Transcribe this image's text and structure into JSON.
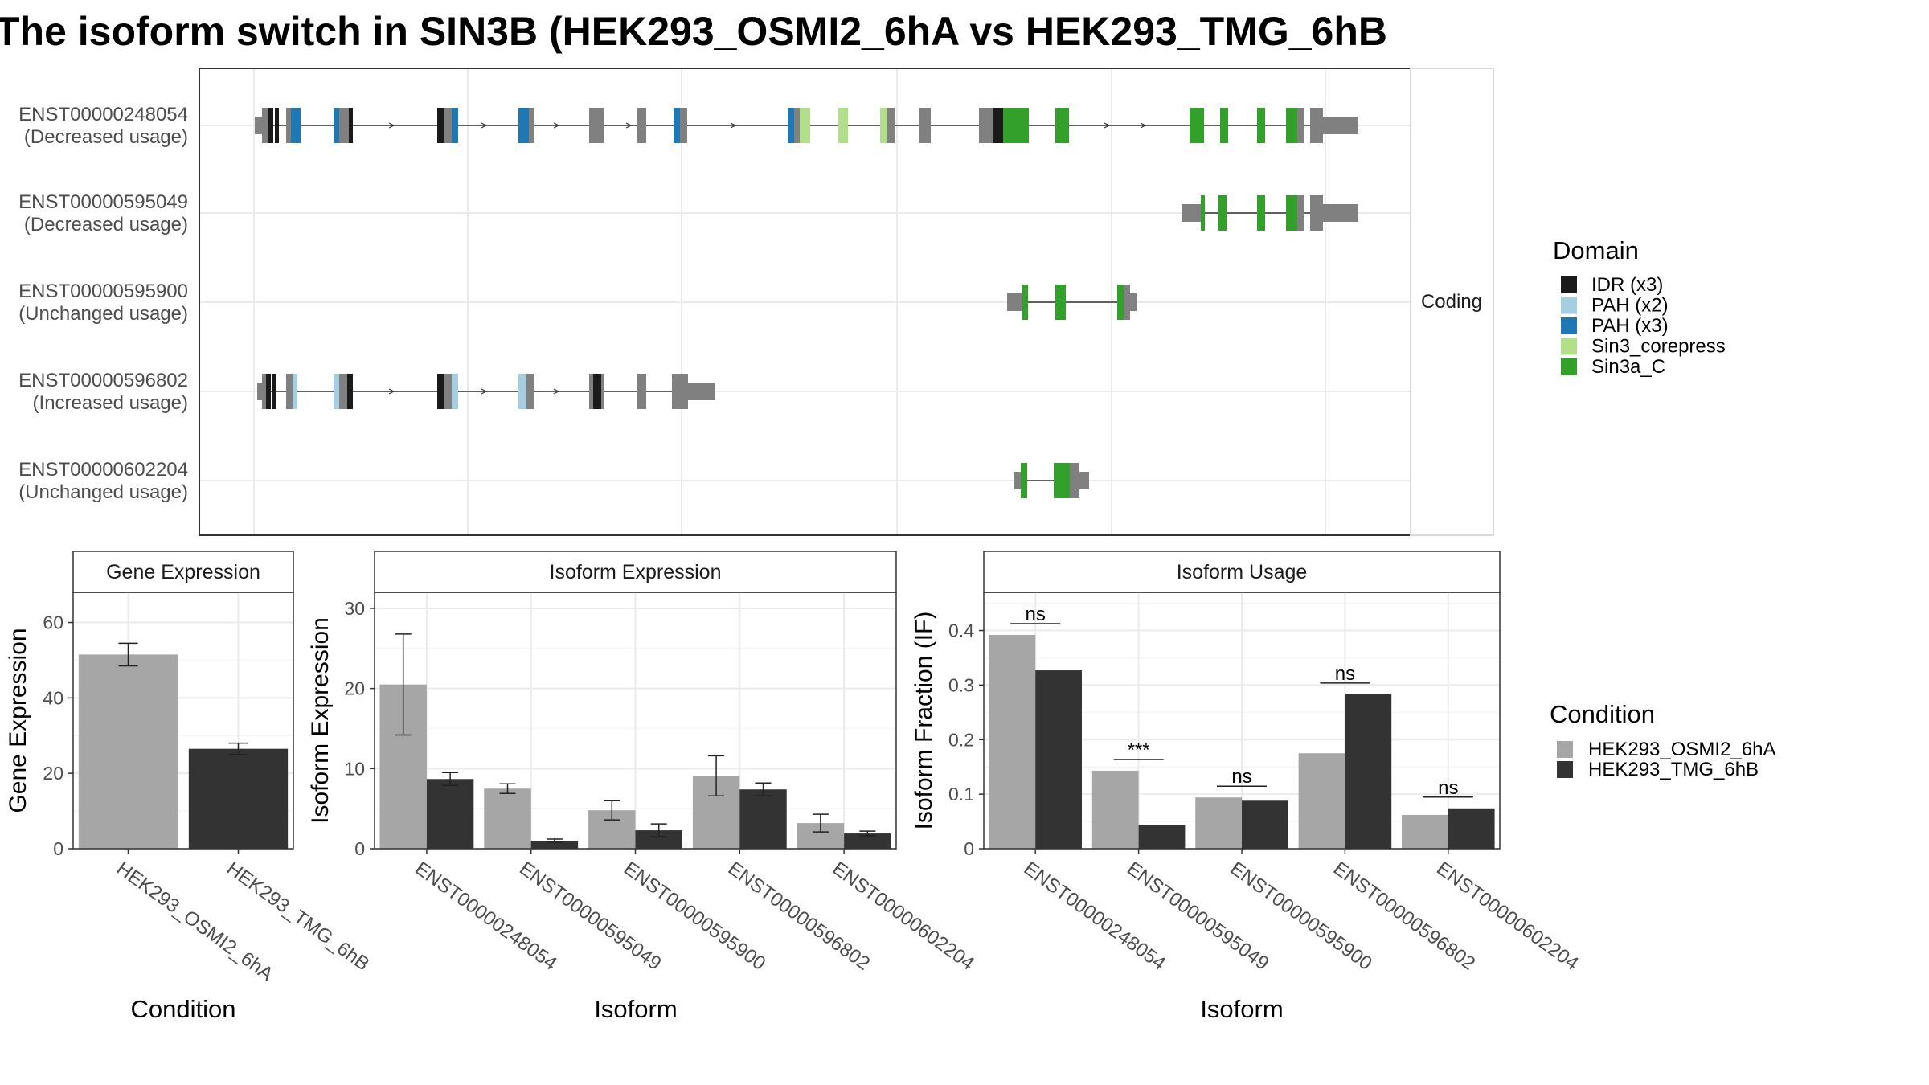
{
  "title": "The isoform switch in SIN3B (HEK293_OSMI2_6hA vs HEK293_TMG_6hB",
  "colors": {
    "idr": "#1a1a1a",
    "pah_x2": "#a6cee3",
    "pah_x3": "#1f78b4",
    "sin3_corepress": "#b2df8a",
    "sin3a_c": "#33a02c",
    "noncoding": "#808080",
    "condition_a": "#a6a6a6",
    "condition_b": "#333333"
  },
  "structure_panel": {
    "facet_label": "Coding",
    "isoforms": [
      {
        "id": "ENST00000248054",
        "usage": "(Decreased usage)"
      },
      {
        "id": "ENST00000595049",
        "usage": "(Decreased usage)"
      },
      {
        "id": "ENST00000595900",
        "usage": "(Unchanged usage)"
      },
      {
        "id": "ENST00000596802",
        "usage": "(Increased usage)"
      },
      {
        "id": "ENST00000602204",
        "usage": "(Unchanged usage)"
      }
    ]
  },
  "legends": {
    "domain": {
      "title": "Domain",
      "items": [
        {
          "label": "IDR (x3)",
          "color_key": "idr"
        },
        {
          "label": "PAH (x2)",
          "color_key": "pah_x2"
        },
        {
          "label": "PAH (x3)",
          "color_key": "pah_x3"
        },
        {
          "label": "Sin3_corepress",
          "color_key": "sin3_corepress"
        },
        {
          "label": "Sin3a_C",
          "color_key": "sin3a_c"
        }
      ]
    },
    "condition": {
      "title": "Condition",
      "items": [
        {
          "label": "HEK293_OSMI2_6hA",
          "color_key": "condition_a"
        },
        {
          "label": "HEK293_TMG_6hB",
          "color_key": "condition_b"
        }
      ]
    }
  },
  "chart_data": [
    {
      "type": "bar",
      "title": "Gene Expression",
      "xlabel": "Condition",
      "ylabel": "Gene Expression",
      "ylim": [
        0,
        68
      ],
      "yticks": [
        0,
        20,
        40,
        60
      ],
      "categories": [
        "HEK293_OSMI2_6hA",
        "HEK293_TMG_6hB"
      ],
      "values": [
        51.5,
        26.5
      ],
      "error": [
        [
          48.5,
          54.5
        ],
        [
          25.0,
          28.0
        ]
      ]
    },
    {
      "type": "bar",
      "title": "Isoform Expression",
      "xlabel": "Isoform",
      "ylabel": "Isoform Expression",
      "ylim": [
        0,
        32
      ],
      "yticks": [
        0,
        10,
        20,
        30
      ],
      "categories": [
        "ENST00000248054",
        "ENST00000595049",
        "ENST00000595900",
        "ENST00000596802",
        "ENST00000602204"
      ],
      "series": [
        {
          "name": "HEK293_OSMI2_6hA",
          "values": [
            20.5,
            7.5,
            4.8,
            9.1,
            3.2
          ],
          "error": [
            [
              14.2,
              26.8
            ],
            [
              6.9,
              8.1
            ],
            [
              3.6,
              6.0
            ],
            [
              6.6,
              11.6
            ],
            [
              2.1,
              4.3
            ]
          ]
        },
        {
          "name": "HEK293_TMG_6hB",
          "values": [
            8.7,
            1.0,
            2.3,
            7.4,
            1.9
          ],
          "error": [
            [
              7.9,
              9.5
            ],
            [
              0.8,
              1.2
            ],
            [
              1.5,
              3.1
            ],
            [
              6.6,
              8.2
            ],
            [
              1.6,
              2.2
            ]
          ]
        }
      ]
    },
    {
      "type": "bar",
      "title": "Isoform Usage",
      "xlabel": "Isoform",
      "ylabel": "Isoform Fraction (IF)",
      "ylim": [
        0,
        0.47
      ],
      "yticks": [
        0.0,
        0.1,
        0.2,
        0.3,
        0.4
      ],
      "categories": [
        "ENST00000248054",
        "ENST00000595049",
        "ENST00000595900",
        "ENST00000596802",
        "ENST00000602204"
      ],
      "series": [
        {
          "name": "HEK293_OSMI2_6hA",
          "values": [
            0.392,
            0.143,
            0.094,
            0.175,
            0.062
          ]
        },
        {
          "name": "HEK293_TMG_6hB",
          "values": [
            0.327,
            0.044,
            0.088,
            0.283,
            0.074
          ]
        }
      ],
      "significance": [
        "ns",
        "***",
        "ns",
        "ns",
        "ns"
      ]
    }
  ]
}
